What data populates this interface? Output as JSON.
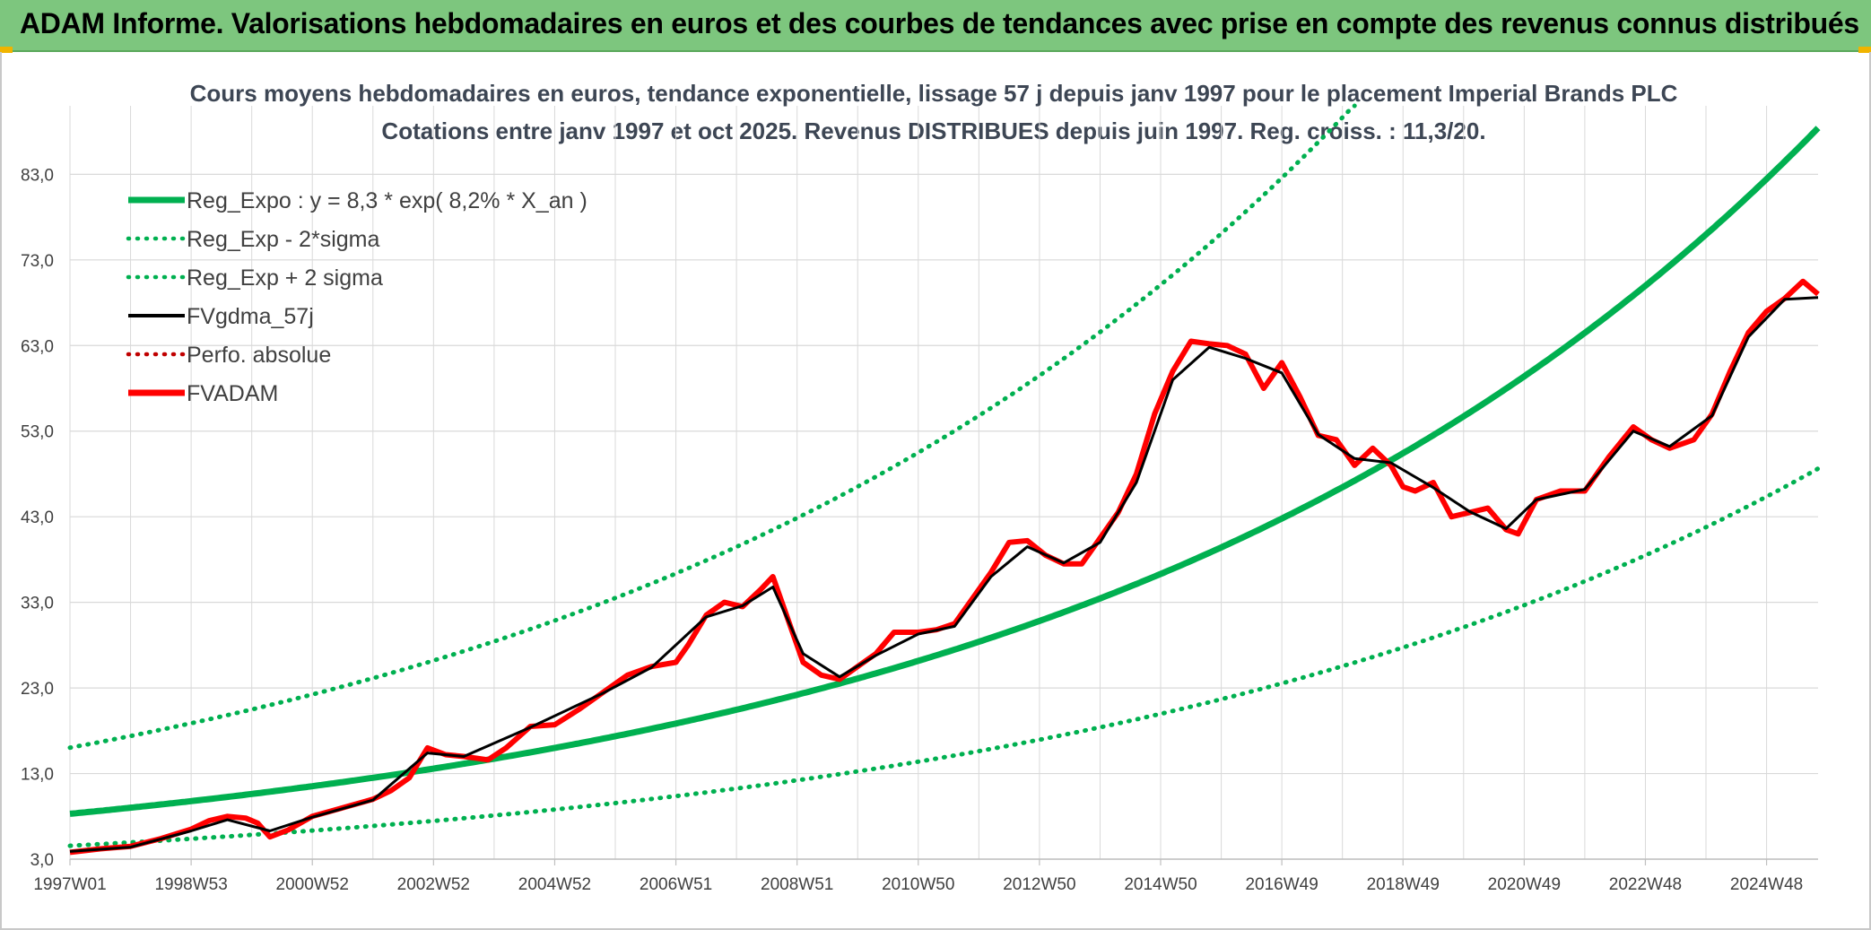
{
  "banner": {
    "title": "ADAM Informe. Valorisations hebdomadaires en euros et des courbes de tendances avec prise en compte des revenus connus distribués"
  },
  "colors": {
    "banner_bg": "#7dc67e",
    "reg_expo": "#00b050",
    "fvadam": "#ff0000",
    "fvgdma": "#000000",
    "perfo": "#c00000",
    "grid": "#d9d9d9"
  },
  "chart_data": {
    "type": "line",
    "title_line1": "Cours moyens hebdomadaires en euros, tendance exponentielle, lissage 57 j depuis janv 1997 pour le placement Imperial Brands PLC",
    "title_line2": "Cotations entre janv 1997 et oct 2025. Revenus DISTRIBUES depuis juin 1997. Reg. croiss. : 11,3/20.",
    "x_tick_labels": [
      "1997W01",
      "1998W53",
      "2000W52",
      "2002W52",
      "2004W52",
      "2006W51",
      "2008W51",
      "2010W50",
      "2012W50",
      "2014W50",
      "2016W49",
      "2018W49",
      "2020W49",
      "2022W48",
      "2024W48"
    ],
    "x_tick_years": [
      1997.0,
      1999.0,
      2001.0,
      2003.0,
      2005.0,
      2007.0,
      2009.0,
      2011.0,
      2013.0,
      2015.0,
      2017.0,
      2019.0,
      2021.0,
      2023.0,
      2025.0
    ],
    "x_range": [
      1997.0,
      2025.85
    ],
    "y_tick_labels": [
      "3,0",
      "13,0",
      "23,0",
      "33,0",
      "43,0",
      "53,0",
      "63,0",
      "73,0",
      "83,0"
    ],
    "y_ticks": [
      3,
      13,
      23,
      33,
      43,
      53,
      63,
      73,
      83
    ],
    "ylim": [
      3,
      91
    ],
    "grid": true,
    "legend_position": "top-left",
    "legend": [
      {
        "label": "Reg_Expo : y = 8,3 * exp( 8,2% *  X_an )",
        "style": "solid-thick",
        "color": "#00b050"
      },
      {
        "label": "Reg_Exp - 2*sigma",
        "style": "dotted",
        "color": "#00b050"
      },
      {
        "label": "Reg_Exp + 2 sigma",
        "style": "dotted",
        "color": "#00b050"
      },
      {
        "label": "FVgdma_57j",
        "style": "solid",
        "color": "#000000"
      },
      {
        "label": "Perfo. absolue",
        "style": "dotted",
        "color": "#c00000"
      },
      {
        "label": "FVADAM",
        "style": "solid-thick",
        "color": "#ff0000"
      }
    ],
    "regression": {
      "a": 8.3,
      "b": 0.082,
      "factor_minus": 0.55,
      "factor_plus": 1.93,
      "x0": 1997.0
    },
    "series": [
      {
        "name": "FVADAM",
        "x": [
          1997.0,
          1997.5,
          1998.0,
          1998.5,
          1999.0,
          1999.3,
          1999.6,
          1999.9,
          2000.1,
          2000.3,
          2000.6,
          2001.0,
          2001.5,
          2002.0,
          2002.3,
          2002.6,
          2002.9,
          2003.2,
          2003.5,
          2003.9,
          2004.2,
          2004.6,
          2005.0,
          2005.4,
          2005.8,
          2006.2,
          2006.6,
          2007.0,
          2007.2,
          2007.5,
          2007.8,
          2008.1,
          2008.4,
          2008.6,
          2008.9,
          2009.1,
          2009.4,
          2009.7,
          2010.0,
          2010.3,
          2010.6,
          2011.0,
          2011.3,
          2011.6,
          2011.9,
          2012.2,
          2012.5,
          2012.8,
          2013.1,
          2013.4,
          2013.7,
          2014.0,
          2014.3,
          2014.6,
          2014.9,
          2015.2,
          2015.5,
          2015.8,
          2016.1,
          2016.4,
          2016.7,
          2017.0,
          2017.3,
          2017.6,
          2017.9,
          2018.2,
          2018.5,
          2018.8,
          2019.0,
          2019.2,
          2019.5,
          2019.8,
          2020.1,
          2020.4,
          2020.7,
          2020.9,
          2021.2,
          2021.6,
          2022.0,
          2022.4,
          2022.8,
          2023.1,
          2023.4,
          2023.8,
          2024.1,
          2024.4,
          2024.7,
          2025.0,
          2025.3,
          2025.6,
          2025.85
        ],
        "values": [
          3.8,
          4.2,
          4.5,
          5.4,
          6.5,
          7.5,
          8.0,
          7.8,
          7.2,
          5.6,
          6.4,
          8.0,
          9.0,
          10.0,
          11.0,
          12.5,
          16.0,
          15.2,
          15.0,
          14.6,
          16.0,
          18.5,
          18.7,
          20.5,
          22.5,
          24.5,
          25.5,
          26.0,
          28.0,
          31.5,
          33.0,
          32.5,
          34.5,
          36.0,
          30.0,
          26.0,
          24.5,
          24.0,
          25.5,
          27.0,
          29.5,
          29.5,
          29.8,
          30.5,
          33.5,
          36.5,
          40.0,
          40.2,
          38.5,
          37.5,
          37.5,
          40.5,
          43.5,
          48.0,
          55.0,
          60.0,
          63.5,
          63.2,
          63.0,
          62.0,
          58.0,
          61.0,
          57.0,
          52.5,
          52.0,
          49.0,
          51.0,
          49.0,
          46.5,
          46.0,
          47.0,
          43.0,
          43.5,
          44.0,
          41.5,
          41.0,
          45.0,
          46.0,
          46.0,
          50.0,
          53.5,
          52.0,
          51.0,
          52.0,
          55.0,
          60.0,
          64.5,
          67.0,
          68.5,
          70.5,
          69.0
        ]
      },
      {
        "name": "FVgdma_57j",
        "x": [
          1997.0,
          1998.0,
          1999.0,
          1999.6,
          2000.3,
          2001.0,
          2002.0,
          2002.9,
          2003.5,
          2004.6,
          2005.8,
          2006.6,
          2007.5,
          2008.1,
          2008.6,
          2009.1,
          2009.7,
          2010.3,
          2011.0,
          2011.6,
          2012.2,
          2012.8,
          2013.4,
          2014.0,
          2014.6,
          2015.2,
          2015.8,
          2016.4,
          2017.0,
          2017.6,
          2018.2,
          2018.8,
          2019.5,
          2020.1,
          2020.7,
          2021.2,
          2022.0,
          2022.8,
          2023.4,
          2024.1,
          2024.7,
          2025.3,
          2025.85
        ],
        "values": [
          3.9,
          4.4,
          6.3,
          7.6,
          6.3,
          7.9,
          9.9,
          15.4,
          15.0,
          18.4,
          22.4,
          25.4,
          31.3,
          32.6,
          34.8,
          27.0,
          24.3,
          26.8,
          29.3,
          30.2,
          36.0,
          39.5,
          37.6,
          40.0,
          47.0,
          59.0,
          62.8,
          61.5,
          59.8,
          52.6,
          49.8,
          49.3,
          46.4,
          43.6,
          41.6,
          45.0,
          46.2,
          53.0,
          51.2,
          54.8,
          64.0,
          68.4,
          68.6
        ]
      }
    ]
  }
}
